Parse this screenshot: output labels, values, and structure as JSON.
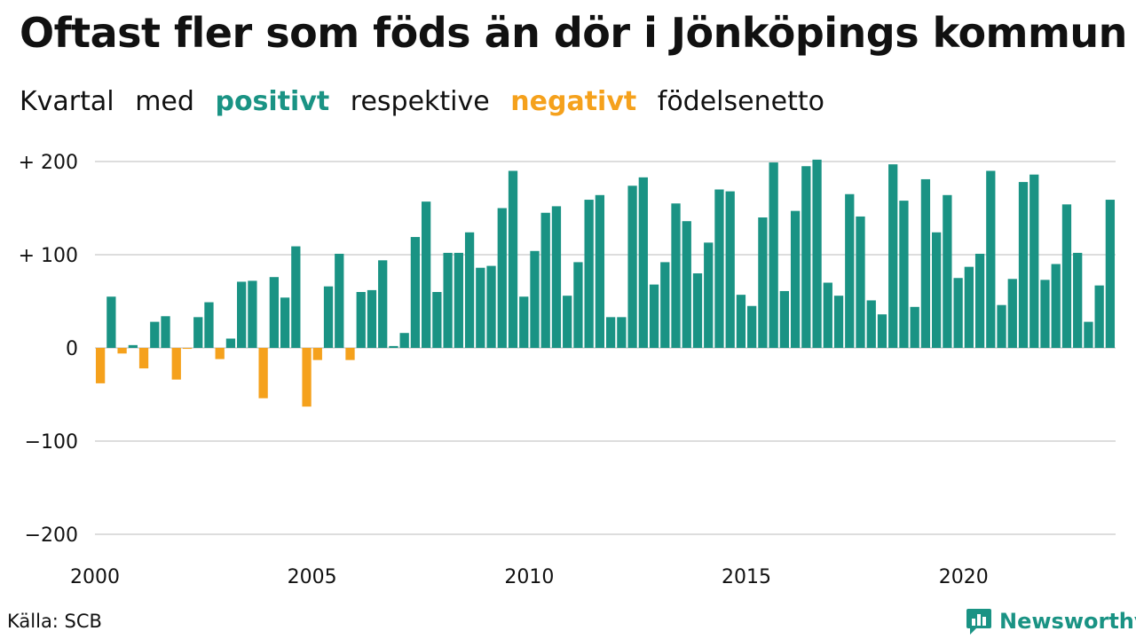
{
  "header": {
    "title": "Oftast fler som föds än dör i Jönköpings kommun",
    "subtitle_parts": [
      "Kvartal",
      "med",
      "positivt",
      "respektive",
      "negativt",
      "födelsenetto"
    ]
  },
  "footer": {
    "source": "Källa: SCB",
    "brand": "Newsworthy"
  },
  "colors": {
    "positive": "#1a9384",
    "negative": "#f5a11c",
    "grid": "#dddddd"
  },
  "chart_data": {
    "type": "bar",
    "x_start": "2000 Q1",
    "frequency": "quarter",
    "ylim": [
      -200,
      200
    ],
    "y_ticks": [
      200,
      100,
      0,
      -100,
      -200
    ],
    "y_tick_labels": [
      "+ 200",
      "+ 100",
      "0",
      "−100",
      "−200"
    ],
    "x_tick_labels": [
      "2000",
      "2005",
      "2010",
      "2015",
      "2020"
    ],
    "values": [
      -38,
      55,
      -6,
      3,
      -22,
      28,
      34,
      -34,
      -1,
      33,
      49,
      -12,
      10,
      71,
      72,
      -54,
      76,
      54,
      109,
      -63,
      -13,
      66,
      101,
      -13,
      60,
      62,
      94,
      2,
      16,
      119,
      157,
      60,
      102,
      102,
      124,
      86,
      88,
      150,
      190,
      55,
      104,
      145,
      152,
      56,
      92,
      159,
      164,
      33,
      33,
      174,
      183,
      68,
      92,
      155,
      136,
      80,
      113,
      170,
      168,
      57,
      45,
      140,
      199,
      61,
      147,
      195,
      202,
      70,
      56,
      165,
      141,
      51,
      36,
      197,
      158,
      44,
      181,
      124,
      164,
      75,
      87,
      101,
      190,
      46,
      74,
      178,
      186,
      73,
      90,
      154,
      102,
      28,
      67,
      159
    ]
  }
}
